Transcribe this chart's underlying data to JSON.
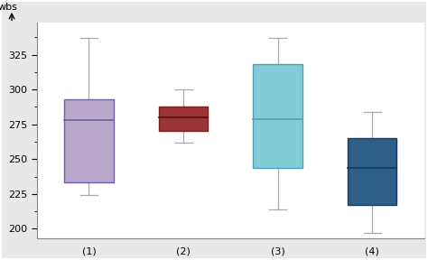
{
  "boxes": [
    {
      "label": "(1)",
      "whislo": 224,
      "q1": 233,
      "med": 278,
      "q3": 293,
      "whishi": 337,
      "color": "#b8a8cc",
      "edge_color": "#7060a0",
      "median_color": "#7060a0"
    },
    {
      "label": "(2)",
      "whislo": 262,
      "q1": 270,
      "med": 280,
      "q3": 288,
      "whishi": 300,
      "color": "#9b3535",
      "edge_color": "#7a2020",
      "median_color": "#5a1010"
    },
    {
      "label": "(3)",
      "whislo": 214,
      "q1": 244,
      "med": 279,
      "q3": 318,
      "whishi": 337,
      "color": "#82ccd8",
      "edge_color": "#50a0b8",
      "median_color": "#50a0b8"
    },
    {
      "label": "(4)",
      "whislo": 197,
      "q1": 217,
      "med": 244,
      "q3": 265,
      "whishi": 284,
      "color": "#2d5f8a",
      "edge_color": "#1a3a5c",
      "median_color": "#1a3a5c"
    }
  ],
  "ylabel": "wbs",
  "ylim": [
    193,
    348
  ],
  "yticks": [
    200,
    225,
    250,
    275,
    300,
    325
  ],
  "background_color": "#ffffff",
  "outer_background": "#e8e8e8",
  "whisker_color": "#aaaaaa",
  "cap_color": "#aaaaaa",
  "positions": [
    1,
    2,
    3,
    4
  ],
  "box_width": 0.52,
  "figsize": [
    4.74,
    2.88
  ],
  "dpi": 100
}
